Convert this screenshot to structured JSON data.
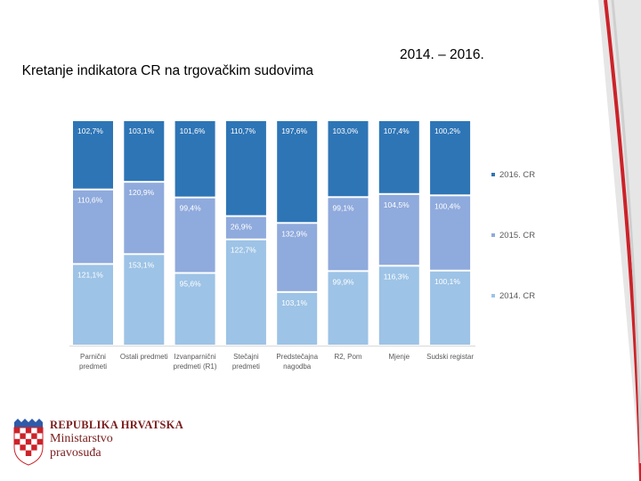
{
  "slide": {
    "title": "Kretanje indikatora CR na trgovačkim sudovima",
    "years": "2014. – 2016."
  },
  "chart_data": {
    "type": "bar",
    "stacked": true,
    "normalized": true,
    "categories": [
      [
        "Parnični",
        "predmeti"
      ],
      [
        "Ostali predmeti"
      ],
      [
        "Izvanparnični",
        "predmeti (R1)"
      ],
      [
        "Stečajni",
        "predmeti"
      ],
      [
        "Predstečajna",
        "nagodba"
      ],
      [
        "R2, Pom"
      ],
      [
        "Mjenje"
      ],
      [
        "Sudski registar"
      ]
    ],
    "series": [
      {
        "name": "2014. CR",
        "values": [
          121.1,
          153.1,
          95.6,
          122.7,
          103.1,
          99.9,
          116.3,
          100.1
        ],
        "labels": [
          "121,1%",
          "153,1%",
          "95,6%",
          "122,7%",
          "103,1%",
          "99,9%",
          "116,3%",
          "100,1%"
        ],
        "color": "#9dc3e6"
      },
      {
        "name": "2015. CR",
        "values": [
          110.6,
          120.9,
          99.4,
          26.9,
          132.9,
          99.1,
          104.5,
          100.4
        ],
        "labels": [
          "110,6%",
          "120,9%",
          "99,4%",
          "26,9%",
          "132,9%",
          "99,1%",
          "104,5%",
          "100,4%"
        ],
        "color": "#8faadc"
      },
      {
        "name": "2016. CR",
        "values": [
          102.7,
          103.1,
          101.6,
          110.7,
          197.6,
          103.0,
          107.4,
          100.2
        ],
        "labels": [
          "102,7%",
          "103,1%",
          "101,6%",
          "110,7%",
          "197,6%",
          "103,0%",
          "107,4%",
          "100,2%"
        ],
        "color": "#2e75b6"
      }
    ],
    "legend": [
      "2016. CR",
      "2015. CR",
      "2014. CR"
    ],
    "legend_position": "right"
  },
  "footer": {
    "line1": "REPUBLIKA HRVATSKA",
    "line2": "Ministarstvo",
    "line3": "pravosuđa"
  }
}
